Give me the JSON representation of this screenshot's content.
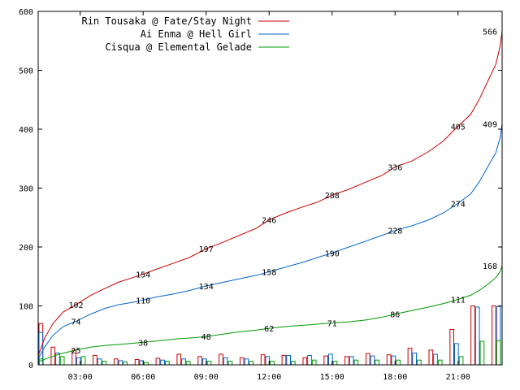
{
  "chart_data": {
    "type": "line",
    "x_axis": {
      "tick_labels": [
        "03:00",
        "06:00",
        "09:00",
        "12:00",
        "15:00",
        "18:00",
        "21:00"
      ],
      "tick_hours": [
        3,
        6,
        9,
        12,
        15,
        18,
        21
      ],
      "range_hours": [
        1,
        23.1
      ]
    },
    "y_axis": {
      "range": [
        0,
        600
      ],
      "ticks": [
        0,
        100,
        200,
        300,
        400,
        500,
        600
      ],
      "tick_labels": [
        "0",
        "100",
        "200",
        "300",
        "400",
        "500",
        "600"
      ]
    },
    "grid": false,
    "legend_position": "top-left",
    "series": [
      {
        "name": "Rin Tousaka @ Fate/Stay Night",
        "color": "#cc0000",
        "points": [
          [
            1.0,
            15
          ],
          [
            1.3,
            45
          ],
          [
            1.7,
            70
          ],
          [
            2.2,
            90
          ],
          [
            2.8,
            102
          ],
          [
            3.5,
            118
          ],
          [
            4.2,
            130
          ],
          [
            4.8,
            140
          ],
          [
            5.5,
            148
          ],
          [
            6.0,
            154
          ],
          [
            6.6,
            162
          ],
          [
            7.4,
            172
          ],
          [
            8.2,
            182
          ],
          [
            9.0,
            197
          ],
          [
            9.8,
            208
          ],
          [
            10.6,
            220
          ],
          [
            11.4,
            232
          ],
          [
            12.0,
            246
          ],
          [
            12.8,
            258
          ],
          [
            13.6,
            268
          ],
          [
            14.3,
            276
          ],
          [
            15.0,
            288
          ],
          [
            15.8,
            298
          ],
          [
            16.6,
            310
          ],
          [
            17.4,
            322
          ],
          [
            18.0,
            336
          ],
          [
            18.8,
            346
          ],
          [
            19.6,
            362
          ],
          [
            20.3,
            380
          ],
          [
            21.0,
            405
          ],
          [
            21.6,
            425
          ],
          [
            22.0,
            450
          ],
          [
            22.4,
            480
          ],
          [
            22.8,
            510
          ],
          [
            23.0,
            540
          ],
          [
            23.1,
            566
          ]
        ],
        "point_labels": [
          {
            "x": 2.8,
            "y": 102,
            "text": "102"
          },
          {
            "x": 6.0,
            "y": 154,
            "text": "154"
          },
          {
            "x": 9.0,
            "y": 197,
            "text": "197"
          },
          {
            "x": 12.0,
            "y": 246,
            "text": "246"
          },
          {
            "x": 15.0,
            "y": 288,
            "text": "288"
          },
          {
            "x": 18.0,
            "y": 336,
            "text": "336"
          },
          {
            "x": 21.0,
            "y": 405,
            "text": "405"
          },
          {
            "x": 23.1,
            "y": 566,
            "text": "566"
          }
        ]
      },
      {
        "name": "Ai Enma @ Hell Girl",
        "color": "#0066cc",
        "points": [
          [
            1.0,
            10
          ],
          [
            1.3,
            30
          ],
          [
            1.7,
            50
          ],
          [
            2.2,
            65
          ],
          [
            2.8,
            74
          ],
          [
            3.5,
            86
          ],
          [
            4.2,
            96
          ],
          [
            4.8,
            102
          ],
          [
            5.5,
            106
          ],
          [
            6.0,
            110
          ],
          [
            6.6,
            115
          ],
          [
            7.4,
            120
          ],
          [
            8.2,
            126
          ],
          [
            9.0,
            134
          ],
          [
            9.8,
            140
          ],
          [
            10.6,
            146
          ],
          [
            11.4,
            152
          ],
          [
            12.0,
            158
          ],
          [
            12.8,
            166
          ],
          [
            13.6,
            174
          ],
          [
            14.3,
            182
          ],
          [
            15.0,
            190
          ],
          [
            15.8,
            200
          ],
          [
            16.6,
            210
          ],
          [
            17.4,
            220
          ],
          [
            18.0,
            228
          ],
          [
            18.8,
            236
          ],
          [
            19.6,
            246
          ],
          [
            20.3,
            258
          ],
          [
            21.0,
            274
          ],
          [
            21.6,
            290
          ],
          [
            22.0,
            310
          ],
          [
            22.4,
            335
          ],
          [
            22.8,
            360
          ],
          [
            23.0,
            385
          ],
          [
            23.1,
            409
          ]
        ],
        "point_labels": [
          {
            "x": 2.8,
            "y": 74,
            "text": "74"
          },
          {
            "x": 6.0,
            "y": 110,
            "text": "110"
          },
          {
            "x": 9.0,
            "y": 134,
            "text": "134"
          },
          {
            "x": 12.0,
            "y": 158,
            "text": "158"
          },
          {
            "x": 15.0,
            "y": 190,
            "text": "190"
          },
          {
            "x": 18.0,
            "y": 228,
            "text": "228"
          },
          {
            "x": 21.0,
            "y": 274,
            "text": "274"
          },
          {
            "x": 23.1,
            "y": 409,
            "text": "409"
          }
        ]
      },
      {
        "name": "Cisqua @ Elemental Gelade",
        "color": "#009900",
        "points": [
          [
            1.0,
            5
          ],
          [
            1.5,
            12
          ],
          [
            2.0,
            18
          ],
          [
            2.8,
            25
          ],
          [
            3.5,
            30
          ],
          [
            4.2,
            33
          ],
          [
            5.0,
            35
          ],
          [
            6.0,
            38
          ],
          [
            6.8,
            41
          ],
          [
            7.6,
            44
          ],
          [
            8.4,
            46
          ],
          [
            9.0,
            48
          ],
          [
            9.8,
            52
          ],
          [
            10.6,
            56
          ],
          [
            11.4,
            59
          ],
          [
            12.0,
            62
          ],
          [
            12.8,
            65
          ],
          [
            13.6,
            67
          ],
          [
            14.3,
            69
          ],
          [
            15.0,
            71
          ],
          [
            15.8,
            73
          ],
          [
            16.6,
            76
          ],
          [
            17.4,
            81
          ],
          [
            18.0,
            86
          ],
          [
            18.8,
            92
          ],
          [
            19.6,
            98
          ],
          [
            20.3,
            104
          ],
          [
            21.0,
            111
          ],
          [
            21.6,
            118
          ],
          [
            22.0,
            126
          ],
          [
            22.4,
            136
          ],
          [
            22.8,
            148
          ],
          [
            23.0,
            158
          ],
          [
            23.1,
            168
          ]
        ],
        "point_labels": [
          {
            "x": 2.8,
            "y": 25,
            "text": "25"
          },
          {
            "x": 6.0,
            "y": 38,
            "text": "38"
          },
          {
            "x": 9.0,
            "y": 48,
            "text": "48"
          },
          {
            "x": 12.0,
            "y": 62,
            "text": "62"
          },
          {
            "x": 15.0,
            "y": 71,
            "text": "71"
          },
          {
            "x": 18.0,
            "y": 86,
            "text": "86"
          },
          {
            "x": 21.0,
            "y": 111,
            "text": "111"
          },
          {
            "x": 23.1,
            "y": 168,
            "text": "168"
          }
        ]
      }
    ],
    "hourly_bars": {
      "hours": [
        1,
        2,
        3,
        4,
        5,
        6,
        7,
        8,
        9,
        10,
        11,
        12,
        13,
        14,
        15,
        16,
        17,
        18,
        19,
        20,
        21,
        22,
        23
      ],
      "series": [
        {
          "name": "Rin Tousaka @ Fate/Stay Night",
          "color": "#cc0000",
          "values": [
            70,
            30,
            25,
            16,
            10,
            9,
            11,
            18,
            14,
            18,
            12,
            17,
            16,
            12,
            15,
            14,
            19,
            17,
            28,
            25,
            60,
            100,
            100
          ]
        },
        {
          "name": "Ai Enma @ Hell Girl",
          "color": "#0066cc",
          "values": [
            55,
            20,
            12,
            10,
            7,
            7,
            8,
            10,
            10,
            12,
            10,
            14,
            16,
            16,
            18,
            14,
            15,
            15,
            20,
            18,
            36,
            98,
            99
          ]
        },
        {
          "name": "Cisqua @ Elemental Gelade",
          "color": "#009900",
          "values": [
            10,
            14,
            14,
            6,
            5,
            4,
            6,
            6,
            6,
            6,
            6,
            6,
            6,
            8,
            6,
            8,
            8,
            8,
            8,
            8,
            14,
            40,
            41
          ]
        }
      ]
    }
  }
}
